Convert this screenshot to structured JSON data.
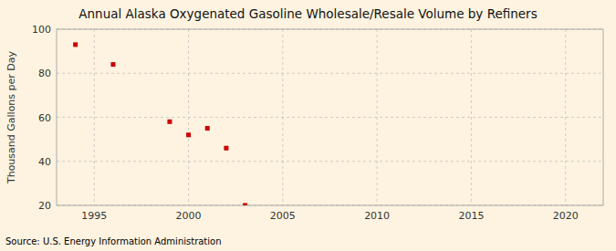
{
  "chart_data": {
    "type": "scatter",
    "title": "Annual Alaska Oxygenated Gasoline Wholesale/Resale Volume by Refiners",
    "ylabel": "Thousand Gallons per Day",
    "source": "Source: U.S. Energy Information Administration",
    "x": [
      1994,
      1996,
      1999,
      2000,
      2001,
      2002,
      2003
    ],
    "values": [
      93,
      84,
      58,
      52,
      55,
      46,
      20
    ],
    "xlim": [
      1993,
      2022
    ],
    "ylim": [
      20,
      100
    ],
    "xticks": [
      1995,
      2000,
      2005,
      2010,
      2015,
      2020
    ],
    "yticks": [
      20,
      40,
      60,
      80,
      100
    ],
    "color": "#cc0000",
    "marker": "square",
    "grid": true
  }
}
